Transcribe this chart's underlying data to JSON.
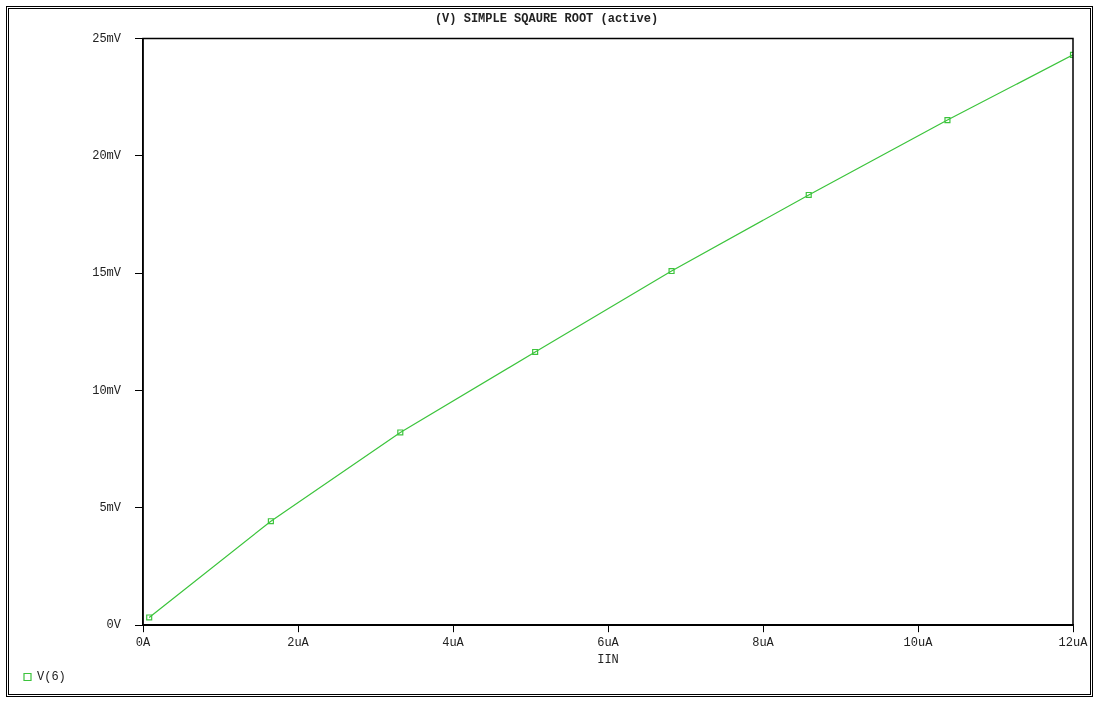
{
  "chart_data": {
    "type": "line",
    "title": "(V) SIMPLE SQAURE ROOT (active)",
    "xlabel": "IIN",
    "x": [
      0.08,
      1.65,
      3.32,
      5.06,
      6.82,
      8.59,
      10.38,
      12
    ],
    "series": [
      {
        "name": "V(6)",
        "color": "#3cc43c",
        "values": [
          0.33,
          4.43,
          8.21,
          11.64,
          15.09,
          18.33,
          21.52,
          24.3
        ]
      }
    ],
    "xlim": [
      0,
      12
    ],
    "xticks": [
      {
        "value": 0,
        "label": "0A"
      },
      {
        "value": 2,
        "label": "2uA"
      },
      {
        "value": 4,
        "label": "4uA"
      },
      {
        "value": 6,
        "label": "6uA"
      },
      {
        "value": 8,
        "label": "8uA"
      },
      {
        "value": 10,
        "label": "10uA"
      },
      {
        "value": 12,
        "label": "12uA"
      }
    ],
    "ylim": [
      0,
      25
    ],
    "yticks": [
      {
        "value": 0,
        "label": "0V"
      },
      {
        "value": 5,
        "label": "5mV"
      },
      {
        "value": 10,
        "label": "10mV"
      },
      {
        "value": 15,
        "label": "15mV"
      },
      {
        "value": 20,
        "label": "20mV"
      },
      {
        "value": 25,
        "label": "25mV"
      }
    ],
    "grid": false,
    "legend": "bottom left",
    "marker": "square",
    "line_style": "solid"
  }
}
